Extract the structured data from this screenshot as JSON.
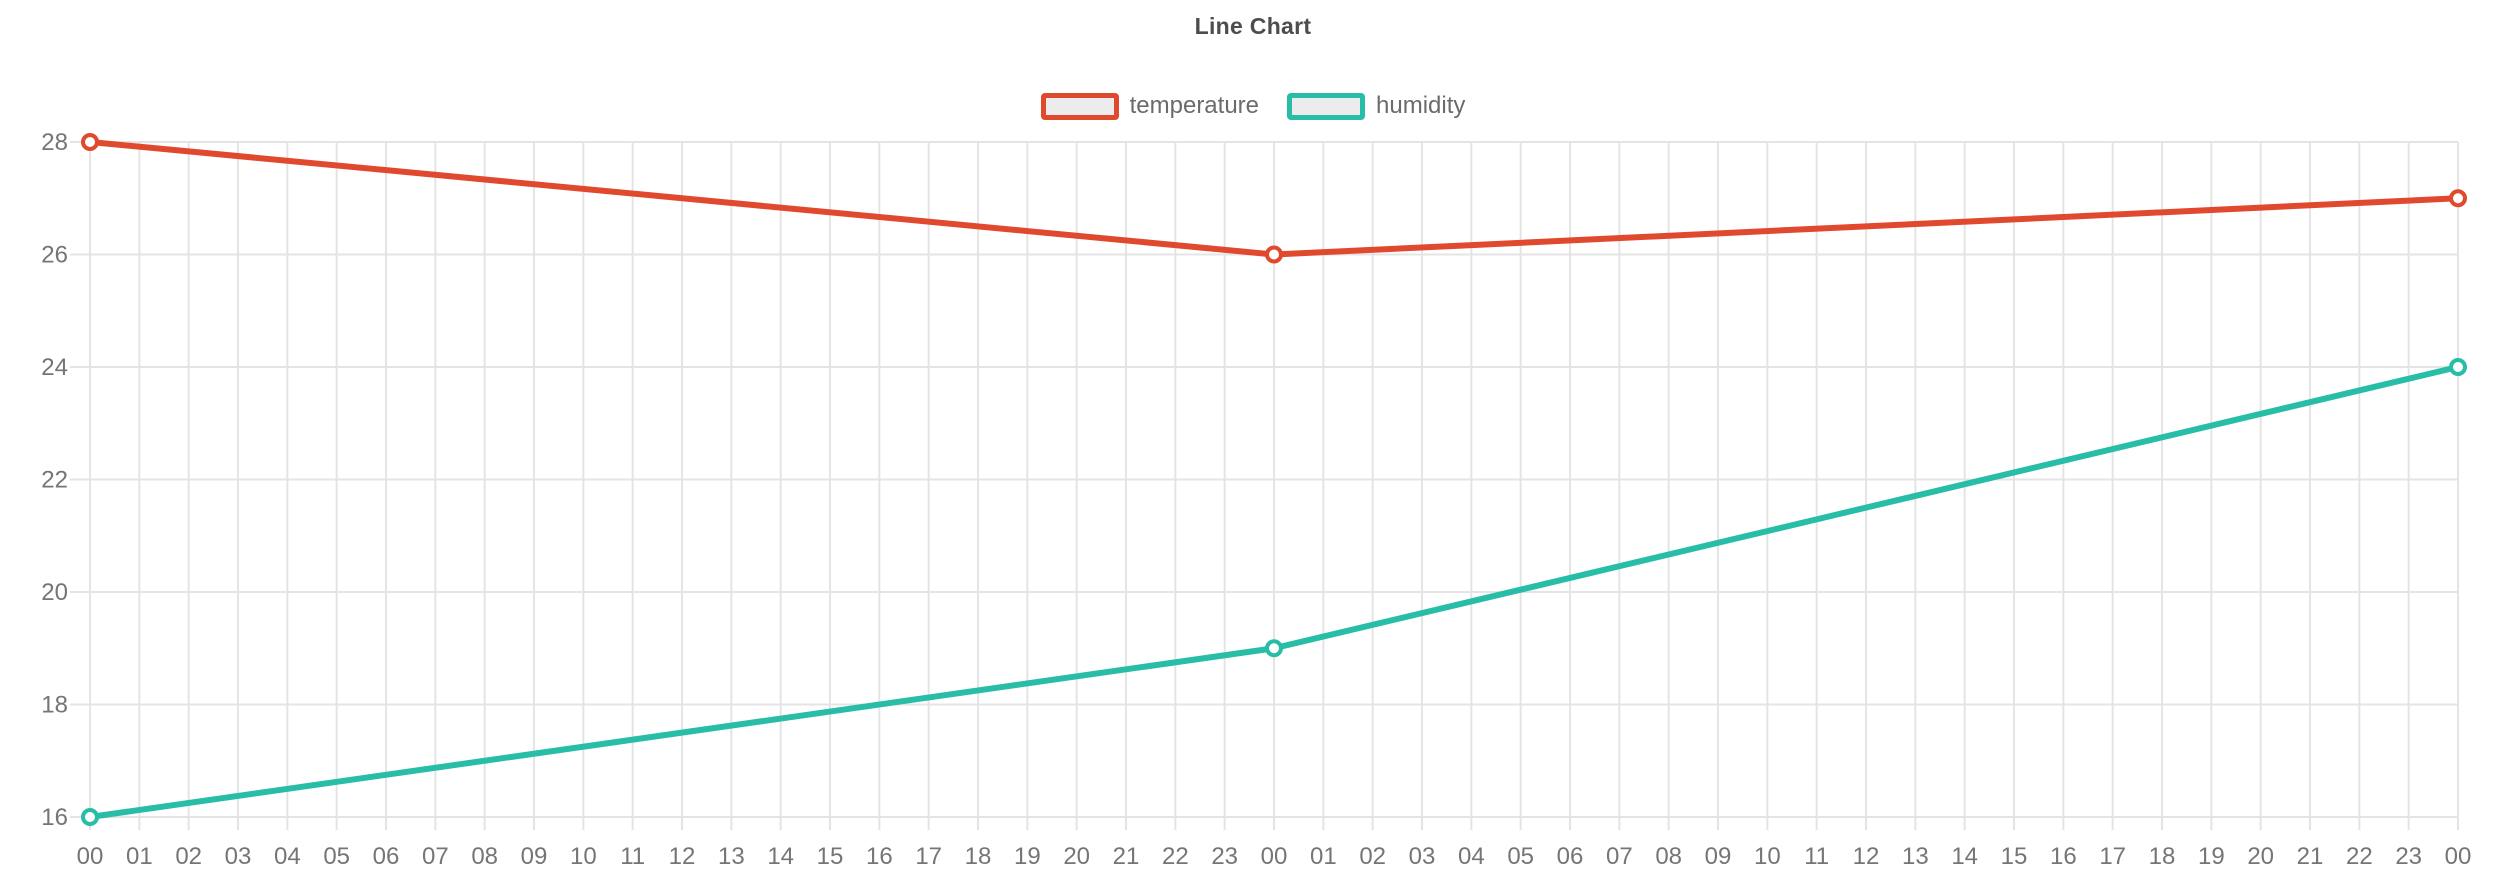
{
  "chart_data": {
    "type": "line",
    "title": "Line Chart",
    "x_categories": [
      "00",
      "01",
      "02",
      "03",
      "04",
      "05",
      "06",
      "07",
      "08",
      "09",
      "10",
      "11",
      "12",
      "13",
      "14",
      "15",
      "16",
      "17",
      "18",
      "19",
      "20",
      "21",
      "22",
      "23",
      "00",
      "01",
      "02",
      "03",
      "04",
      "05",
      "06",
      "07",
      "08",
      "09",
      "10",
      "11",
      "12",
      "13",
      "14",
      "15",
      "16",
      "17",
      "18",
      "19",
      "20",
      "21",
      "22",
      "23",
      "00"
    ],
    "ylim": [
      16,
      28
    ],
    "y_ticks": [
      16,
      18,
      20,
      22,
      24,
      26,
      28
    ],
    "grid": true,
    "legend_position": "top",
    "series": [
      {
        "name": "temperature",
        "color": "#e0492e",
        "x_indices": [
          0,
          24,
          48
        ],
        "values": [
          28,
          26,
          27
        ]
      },
      {
        "name": "humidity",
        "color": "#28bda6",
        "x_indices": [
          0,
          24,
          48
        ],
        "values": [
          16,
          19,
          24
        ]
      }
    ],
    "colors": {
      "grid": "#e4e4e4",
      "axis_label": "#757575",
      "title": "#4d4d4d",
      "legend_text": "#6b6b6b",
      "legend_swatch_fill": "#ececec",
      "marker_fill": "#ffffff"
    }
  }
}
